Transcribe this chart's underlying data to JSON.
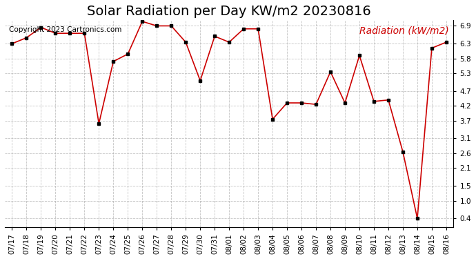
{
  "title": "Solar Radiation per Day KW/m2 20230816",
  "copyright": "Copyright 2023 Cartronics.com",
  "legend_label": "Radiation (kW/m2)",
  "dates": [
    "07/17",
    "07/18",
    "07/19",
    "07/20",
    "07/21",
    "07/22",
    "07/23",
    "07/24",
    "07/25",
    "07/26",
    "07/27",
    "07/28",
    "07/29",
    "07/30",
    "07/31",
    "08/01",
    "08/02",
    "08/03",
    "08/04",
    "08/05",
    "08/06",
    "08/07",
    "08/08",
    "08/09",
    "08/10",
    "08/11",
    "08/12",
    "08/13",
    "08/14",
    "08/15",
    "08/16"
  ],
  "values": [
    6.3,
    6.5,
    6.85,
    6.65,
    6.65,
    6.65,
    3.6,
    5.7,
    5.95,
    7.05,
    6.9,
    6.9,
    6.35,
    5.05,
    6.55,
    6.35,
    6.8,
    6.8,
    3.75,
    4.3,
    4.3,
    4.25,
    5.35,
    4.3,
    5.9,
    4.35,
    4.4,
    2.65,
    0.4,
    6.15,
    6.35
  ],
  "line_color": "#cc0000",
  "marker_color": "#000000",
  "bg_color": "#ffffff",
  "grid_color": "#aaaaaa",
  "title_color": "#000000",
  "copyright_color": "#000000",
  "legend_color": "#cc0000",
  "yticks": [
    0.4,
    1.0,
    1.5,
    2.1,
    2.6,
    3.1,
    3.7,
    4.2,
    4.7,
    5.3,
    5.8,
    6.3,
    6.9
  ],
  "ymin": 0.1,
  "ymax": 7.1,
  "title_fontsize": 14,
  "tick_fontsize": 7.5,
  "legend_fontsize": 10,
  "copyright_fontsize": 7.5
}
